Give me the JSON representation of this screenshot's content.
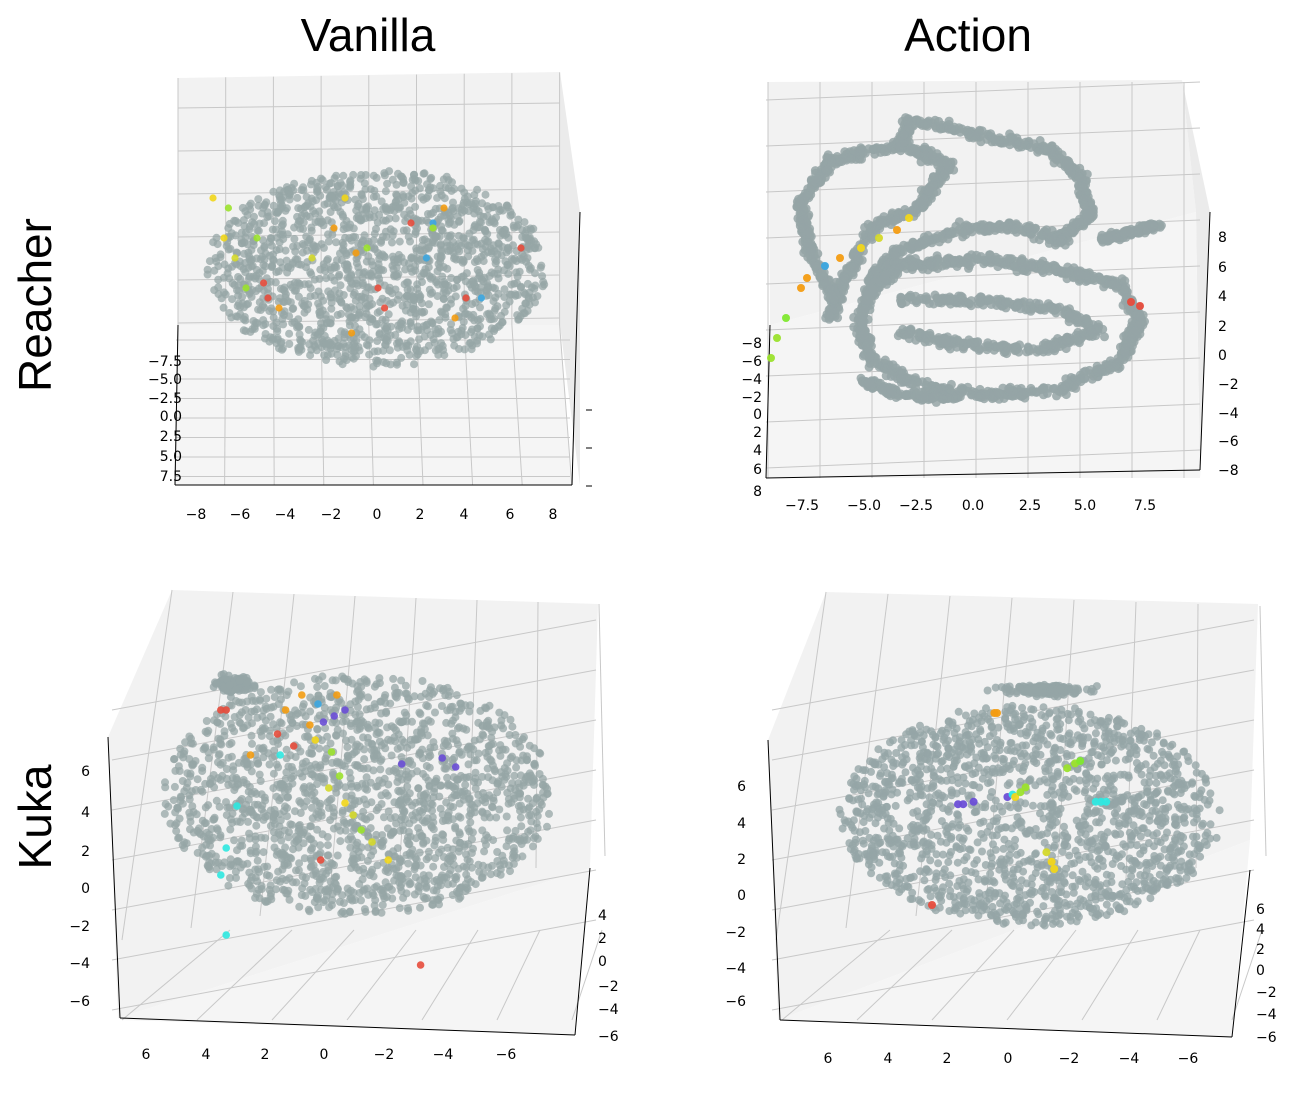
{
  "columns": [
    "Vanilla",
    "Action"
  ],
  "rows": [
    "Reacher",
    "Kuka"
  ],
  "colors": {
    "cloud": "#95a5a6",
    "grid": "#c8c8c8",
    "pane": "#f2f2f2",
    "highlight": [
      "#e74c3c",
      "#f39c12",
      "#f1d61a",
      "#d4d82a",
      "#9be22c",
      "#7fe82e",
      "#2ee8e0",
      "#3ba6e0",
      "#6a4ed6"
    ]
  },
  "chart_data": [
    {
      "type": "scatter",
      "title": "Vanilla",
      "row": "Reacher",
      "x_ticks": [
        "−8",
        "−6",
        "−4",
        "−2",
        "0",
        "2",
        "4",
        "6",
        "8"
      ],
      "y_ticks": [
        "−7.5",
        "−5.0",
        "−2.5",
        "0.0",
        "2.5",
        "5.0",
        "7.5"
      ],
      "z_ticks": [],
      "highlights": [
        {
          "x": -7,
          "y": 3,
          "c": "#f1d61a"
        },
        {
          "x": -6.5,
          "y": 1,
          "c": "#d4d82a"
        },
        {
          "x": -5.5,
          "y": 3,
          "c": "#9be22c"
        },
        {
          "x": -6,
          "y": -2,
          "c": "#9be22c"
        },
        {
          "x": -5,
          "y": -3,
          "c": "#e74c3c"
        },
        {
          "x": -5.2,
          "y": -1.5,
          "c": "#e74c3c"
        },
        {
          "x": -4.5,
          "y": -4,
          "c": "#f39c12"
        },
        {
          "x": -3,
          "y": 1,
          "c": "#d4d82a"
        },
        {
          "x": -2,
          "y": 4,
          "c": "#f39c12"
        },
        {
          "x": -1,
          "y": 1.5,
          "c": "#f39c12"
        },
        {
          "x": -0.5,
          "y": 2,
          "c": "#9be22c"
        },
        {
          "x": 0,
          "y": -2,
          "c": "#e74c3c"
        },
        {
          "x": 0.3,
          "y": -4,
          "c": "#e74c3c"
        },
        {
          "x": -1.2,
          "y": -6.5,
          "c": "#f39c12"
        },
        {
          "x": 1.5,
          "y": 4.5,
          "c": "#e74c3c"
        },
        {
          "x": 2.5,
          "y": 4.5,
          "c": "#3ba6e0"
        },
        {
          "x": 2.5,
          "y": 4,
          "c": "#9be22c"
        },
        {
          "x": 2.2,
          "y": 1,
          "c": "#3ba6e0"
        },
        {
          "x": 3,
          "y": 6,
          "c": "#f39c12"
        },
        {
          "x": 4,
          "y": -3,
          "c": "#e74c3c"
        },
        {
          "x": 4.7,
          "y": -3,
          "c": "#3ba6e0"
        },
        {
          "x": 3.5,
          "y": -5,
          "c": "#f39c12"
        },
        {
          "x": 6.5,
          "y": 2,
          "c": "#e74c3c"
        },
        {
          "x": -1.5,
          "y": 7,
          "c": "#f1d61a"
        },
        {
          "x": -7.5,
          "y": 7,
          "c": "#f1d61a"
        },
        {
          "x": -6.8,
          "y": 6,
          "c": "#9be22c"
        }
      ]
    },
    {
      "type": "scatter",
      "title": "Action",
      "row": "Reacher",
      "x_ticks": [
        "−7.5",
        "−5.0",
        "−2.5",
        "0.0",
        "2.5",
        "5.0",
        "7.5"
      ],
      "y_ticks": [
        "−8",
        "−6",
        "−4",
        "−2",
        "0",
        "2",
        "4",
        "6",
        "8"
      ],
      "z_ticks": [
        "8",
        "6",
        "4",
        "2",
        "0",
        "−2",
        "−4",
        "−6",
        "−8"
      ],
      "highlights": [
        {
          "x": -6.8,
          "y": -2,
          "c": "#9be22c"
        },
        {
          "x": -6.6,
          "y": -1,
          "c": "#9be22c"
        },
        {
          "x": -6.3,
          "y": 0,
          "c": "#7fe82e"
        },
        {
          "x": -5.8,
          "y": 1.5,
          "c": "#f39c12"
        },
        {
          "x": -5.6,
          "y": 2,
          "c": "#f39c12"
        },
        {
          "x": -5.0,
          "y": 2.6,
          "c": "#3ba6e0"
        },
        {
          "x": -4.5,
          "y": 3,
          "c": "#f39c12"
        },
        {
          "x": -3.8,
          "y": 3.5,
          "c": "#f1d61a"
        },
        {
          "x": -3.2,
          "y": 4,
          "c": "#d4d82a"
        },
        {
          "x": -2.6,
          "y": 4.4,
          "c": "#f39c12"
        },
        {
          "x": -2.2,
          "y": 5,
          "c": "#f1d61a"
        },
        {
          "x": 5.2,
          "y": 0.8,
          "c": "#e74c3c"
        },
        {
          "x": 5.5,
          "y": 0.6,
          "c": "#e74c3c"
        }
      ]
    },
    {
      "type": "scatter",
      "title": "Vanilla",
      "row": "Kuka",
      "x_ticks": [
        "6",
        "4",
        "2",
        "0",
        "−2",
        "−4",
        "−6"
      ],
      "y_ticks": [
        "4",
        "2",
        "0",
        "−2",
        "−4",
        "−6"
      ],
      "z_ticks": [
        "6",
        "4",
        "2",
        "0",
        "−2",
        "−4",
        "−6"
      ],
      "highlights": [
        {
          "x": 4.6,
          "y": 4,
          "c": "#e74c3c"
        },
        {
          "x": 4.4,
          "y": 4,
          "c": "#e74c3c"
        },
        {
          "x": 3.5,
          "y": 2.5,
          "c": "#f39c12"
        },
        {
          "x": 2.5,
          "y": 3.2,
          "c": "#e74c3c"
        },
        {
          "x": 2.2,
          "y": 4,
          "c": "#f39c12"
        },
        {
          "x": 1.6,
          "y": 4.5,
          "c": "#f39c12"
        },
        {
          "x": 1.3,
          "y": 3.5,
          "c": "#f39c12"
        },
        {
          "x": 1,
          "y": 4.2,
          "c": "#3ba6e0"
        },
        {
          "x": 0.8,
          "y": 3.6,
          "c": "#6a4ed6"
        },
        {
          "x": 0.4,
          "y": 3.8,
          "c": "#6a4ed6"
        },
        {
          "x": 1.1,
          "y": 3.0,
          "c": "#f1d61a"
        },
        {
          "x": 0.3,
          "y": 4.5,
          "c": "#f39c12"
        },
        {
          "x": 0.0,
          "y": 4.0,
          "c": "#6a4ed6"
        },
        {
          "x": 2.4,
          "y": 2.5,
          "c": "#2ee8e0"
        },
        {
          "x": 1.9,
          "y": 2.8,
          "c": "#e74c3c"
        },
        {
          "x": 0.5,
          "y": 2.6,
          "c": "#9be22c"
        },
        {
          "x": 0.2,
          "y": 1.8,
          "c": "#9be22c"
        },
        {
          "x": 0.6,
          "y": 1.4,
          "c": "#d4d82a"
        },
        {
          "x": 0.0,
          "y": 0.9,
          "c": "#f1d61a"
        },
        {
          "x": -0.3,
          "y": 0.5,
          "c": "#d4d82a"
        },
        {
          "x": -0.6,
          "y": 0.0,
          "c": "#9be22c"
        },
        {
          "x": -1.0,
          "y": -0.4,
          "c": "#d4d82a"
        },
        {
          "x": -1.6,
          "y": -1.0,
          "c": "#f1d61a"
        },
        {
          "x": 0.9,
          "y": -1.0,
          "c": "#e74c3c"
        },
        {
          "x": 4.0,
          "y": 0.8,
          "c": "#2ee8e0"
        },
        {
          "x": 4.4,
          "y": -0.6,
          "c": "#2ee8e0"
        },
        {
          "x": 4.6,
          "y": -1.5,
          "c": "#2ee8e0"
        },
        {
          "x": 4.4,
          "y": -3.5,
          "c": "#2ee8e0"
        },
        {
          "x": -2.1,
          "y": 2.2,
          "c": "#6a4ed6"
        },
        {
          "x": -3.6,
          "y": 2.4,
          "c": "#6a4ed6"
        },
        {
          "x": -4.1,
          "y": 2.1,
          "c": "#6a4ed6"
        },
        {
          "x": -2.8,
          "y": -4.5,
          "c": "#e74c3c"
        }
      ]
    },
    {
      "type": "scatter",
      "title": "Action",
      "row": "Kuka",
      "x_ticks": [
        "6",
        "4",
        "2",
        "0",
        "−2",
        "−4",
        "−6"
      ],
      "y_ticks": [
        "6",
        "4",
        "2",
        "0",
        "−2",
        "−4",
        "−6"
      ],
      "z_ticks": [
        "6",
        "4",
        "2",
        "0",
        "−2",
        "−4",
        "−6"
      ],
      "highlights": [
        {
          "x": 0.6,
          "y": 5,
          "c": "#f39c12"
        },
        {
          "x": 0.5,
          "y": 5,
          "c": "#f39c12"
        },
        {
          "x": 2.0,
          "y": 1.2,
          "c": "#6a4ed6"
        },
        {
          "x": 1.8,
          "y": 1.2,
          "c": "#6a4ed6"
        },
        {
          "x": 1.4,
          "y": 1.3,
          "c": "#6a4ed6"
        },
        {
          "x": 0.1,
          "y": 1.5,
          "c": "#6a4ed6"
        },
        {
          "x": -0.1,
          "y": 1.6,
          "c": "#2ee8e0"
        },
        {
          "x": -0.2,
          "y": 1.5,
          "c": "#f1d61a"
        },
        {
          "x": -0.4,
          "y": 1.7,
          "c": "#9be22c"
        },
        {
          "x": -0.6,
          "y": 1.9,
          "c": "#9be22c"
        },
        {
          "x": -2.2,
          "y": 2.7,
          "c": "#9be22c"
        },
        {
          "x": -2.5,
          "y": 2.9,
          "c": "#9be22c"
        },
        {
          "x": -2.7,
          "y": 3.0,
          "c": "#7fe82e"
        },
        {
          "x": -3.3,
          "y": 1.3,
          "c": "#2ee8e0"
        },
        {
          "x": -3.5,
          "y": 1.3,
          "c": "#2ee8e0"
        },
        {
          "x": -3.7,
          "y": 1.3,
          "c": "#2ee8e0"
        },
        {
          "x": -1.4,
          "y": -0.8,
          "c": "#d4d82a"
        },
        {
          "x": -1.6,
          "y": -1.2,
          "c": "#f1d61a"
        },
        {
          "x": -1.7,
          "y": -1.5,
          "c": "#f1d61a"
        },
        {
          "x": 3.0,
          "y": -3.0,
          "c": "#e74c3c"
        }
      ]
    }
  ]
}
